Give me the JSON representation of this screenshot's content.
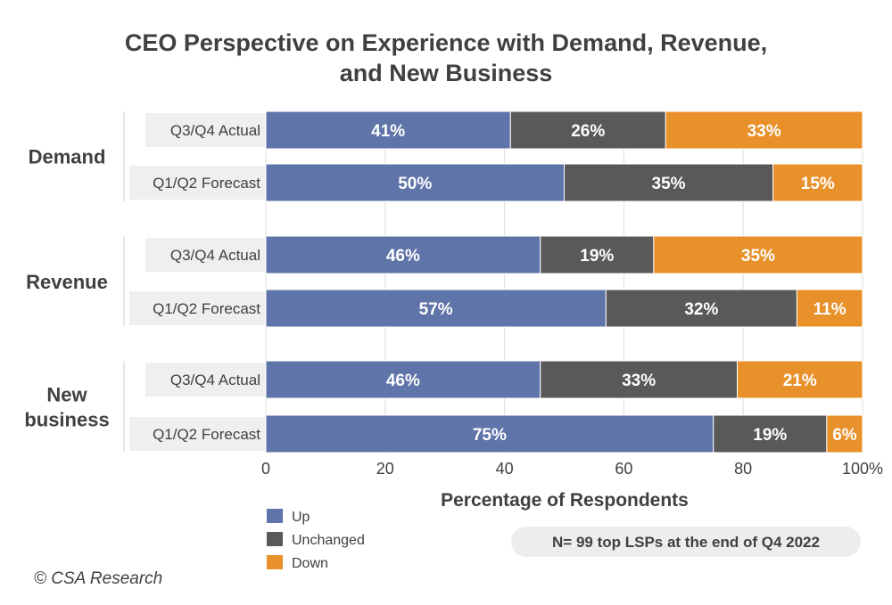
{
  "chart_data": {
    "type": "bar",
    "orientation": "horizontal",
    "stacked": true,
    "title": "CEO Perspective on Experience with Demand, Revenue, and New Business",
    "title_lines": [
      "CEO Perspective on Experience with Demand, Revenue,",
      "and New Business"
    ],
    "xlabel": "Percentage of Respondents",
    "xlim": [
      0,
      100
    ],
    "xticks": [
      "0",
      "20",
      "40",
      "60",
      "80",
      "100%"
    ],
    "grid": true,
    "legend_position": "bottom-left",
    "groups": [
      {
        "label": "Demand",
        "label_lines": [
          "Demand"
        ],
        "rows": [
          {
            "label": "Q3/Q4 Actual",
            "values": [
              41,
              26,
              33
            ]
          },
          {
            "label": "Q1/Q2 Forecast",
            "values": [
              50,
              35,
              15
            ]
          }
        ]
      },
      {
        "label": "Revenue",
        "label_lines": [
          "Revenue"
        ],
        "rows": [
          {
            "label": "Q3/Q4 Actual",
            "values": [
              46,
              19,
              35
            ]
          },
          {
            "label": "Q1/Q2 Forecast",
            "values": [
              57,
              32,
              11
            ]
          }
        ]
      },
      {
        "label": "New business",
        "label_lines": [
          "New",
          "business"
        ],
        "rows": [
          {
            "label": "Q3/Q4 Actual",
            "values": [
              46,
              33,
              21
            ]
          },
          {
            "label": "Q1/Q2 Forecast",
            "values": [
              75,
              19,
              6
            ]
          }
        ]
      }
    ],
    "series": [
      {
        "name": "Up",
        "color": "#5f74a8"
      },
      {
        "name": "Unchanged",
        "color": "#595959"
      },
      {
        "name": "Down",
        "color": "#e8902a"
      }
    ],
    "note": "N= 99 top LSPs at the end of Q4 2022"
  },
  "copyright": "© CSA Research"
}
